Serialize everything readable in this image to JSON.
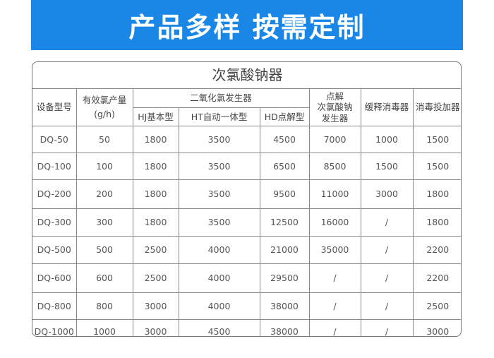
{
  "banner": {
    "title": "产品多样 按需定制"
  },
  "table": {
    "title": "次氯酸钠器",
    "headers": {
      "model": "设备型号",
      "output_line1": "有效氯产量",
      "output_line2": "(g/h)",
      "clo2_group": "二氧化氯发生器",
      "hj": "HJ基本型",
      "ht": "HT自动一体型",
      "hd": "HD点解型",
      "naclo_line1": "点解",
      "naclo_line2": "次氯酸钠",
      "naclo_line3": "发生器",
      "slow_release": "缓释消毒器",
      "dosing": "消毒投加器"
    },
    "rows": [
      [
        "DQ-50",
        "50",
        "1800",
        "3500",
        "4500",
        "7000",
        "1000",
        "1500"
      ],
      [
        "DQ-100",
        "100",
        "1800",
        "3500",
        "6500",
        "8500",
        "1500",
        "1500"
      ],
      [
        "DQ-200",
        "200",
        "1800",
        "3500",
        "9500",
        "11000",
        "3000",
        "1800"
      ],
      [
        "DQ-300",
        "300",
        "1800",
        "3500",
        "12500",
        "16000",
        "/",
        "1800"
      ],
      [
        "DQ-500",
        "500",
        "2500",
        "4000",
        "21000",
        "35000",
        "/",
        "2200"
      ],
      [
        "DQ-600",
        "600",
        "2500",
        "4000",
        "29500",
        "/",
        "/",
        "2200"
      ],
      [
        "DQ-800",
        "800",
        "3000",
        "4000",
        "38000",
        "/",
        "/",
        "2500"
      ],
      [
        "DQ-1000",
        "1000",
        "3000",
        "4500",
        "38000",
        "/",
        "/",
        "3000"
      ]
    ]
  }
}
